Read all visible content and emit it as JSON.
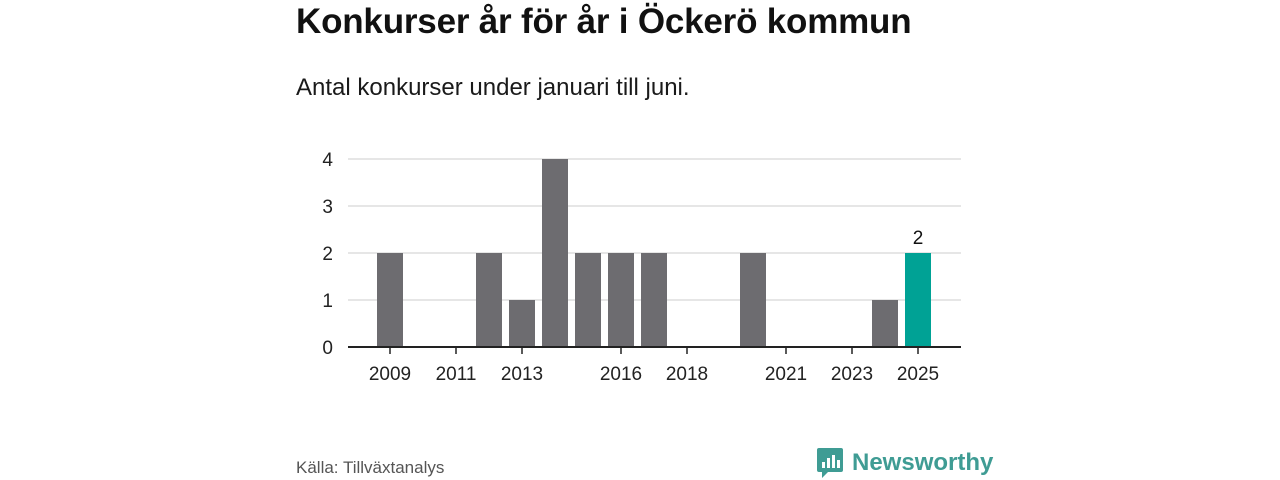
{
  "header": {
    "title": "Konkurser år för år i Öckerö kommun",
    "subtitle": "Antal konkurser under januari till juni."
  },
  "footer": {
    "source": "Källa: Tillväxtanalys",
    "brand": "Newsworthy"
  },
  "colors": {
    "bar": "#6d6c70",
    "highlight": "#00a295",
    "grid": "#dddddd",
    "axis": "#222222",
    "brand": "#3f9c94"
  },
  "chart_data": {
    "type": "bar",
    "categories": [
      2009,
      2010,
      2011,
      2012,
      2013,
      2014,
      2015,
      2016,
      2017,
      2018,
      2019,
      2020,
      2021,
      2022,
      2023,
      2024,
      2025
    ],
    "values": [
      2,
      0,
      0,
      2,
      1,
      4,
      2,
      2,
      2,
      0,
      0,
      2,
      0,
      0,
      0,
      1,
      2
    ],
    "highlight_category": 2025,
    "xtick_labels": [
      "2009",
      "2011",
      "2013",
      "2016",
      "2018",
      "2021",
      "2023",
      "2025"
    ],
    "yticks": [
      0,
      1,
      2,
      3,
      4
    ],
    "ylim": [
      0,
      4
    ],
    "value_labels": [
      {
        "category": 2025,
        "text": "2"
      }
    ],
    "grid": true
  }
}
